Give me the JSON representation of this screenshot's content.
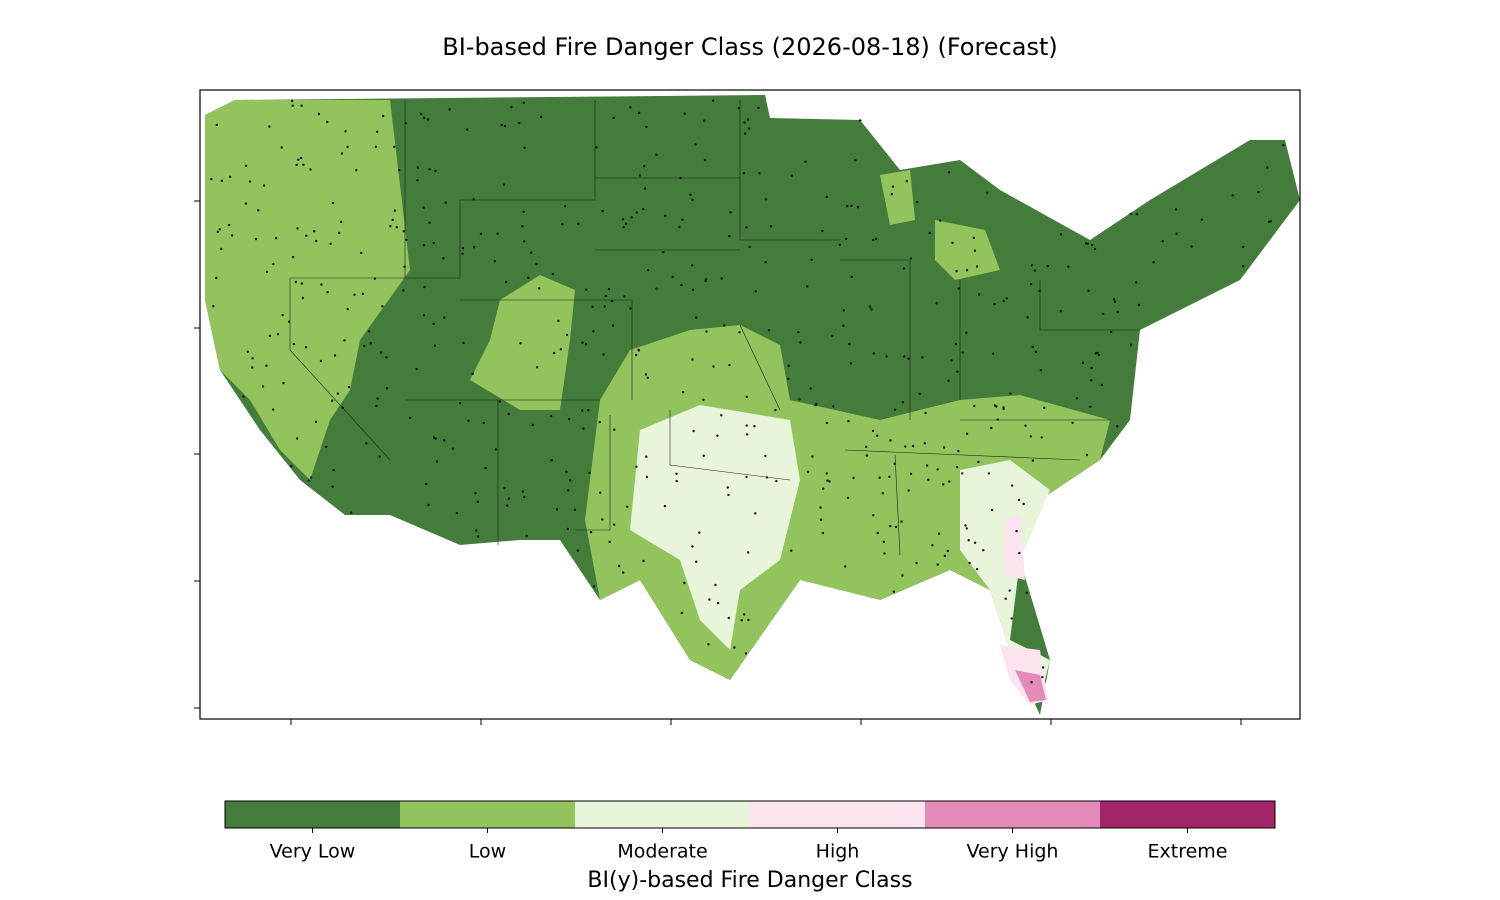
{
  "title": "BI-based Fire Danger Class (2026-08-18) (Forecast)",
  "colorbar": {
    "label": "BI(y)-based Fire Danger Class",
    "classes": [
      {
        "name": "Very Low",
        "color": "#437c3b"
      },
      {
        "name": "Low",
        "color": "#93c35c"
      },
      {
        "name": "Moderate",
        "color": "#e8f5da"
      },
      {
        "name": "High",
        "color": "#fbe3ef"
      },
      {
        "name": "Very High",
        "color": "#e38ab9"
      },
      {
        "name": "Extreme",
        "color": "#a32569"
      }
    ]
  }
}
